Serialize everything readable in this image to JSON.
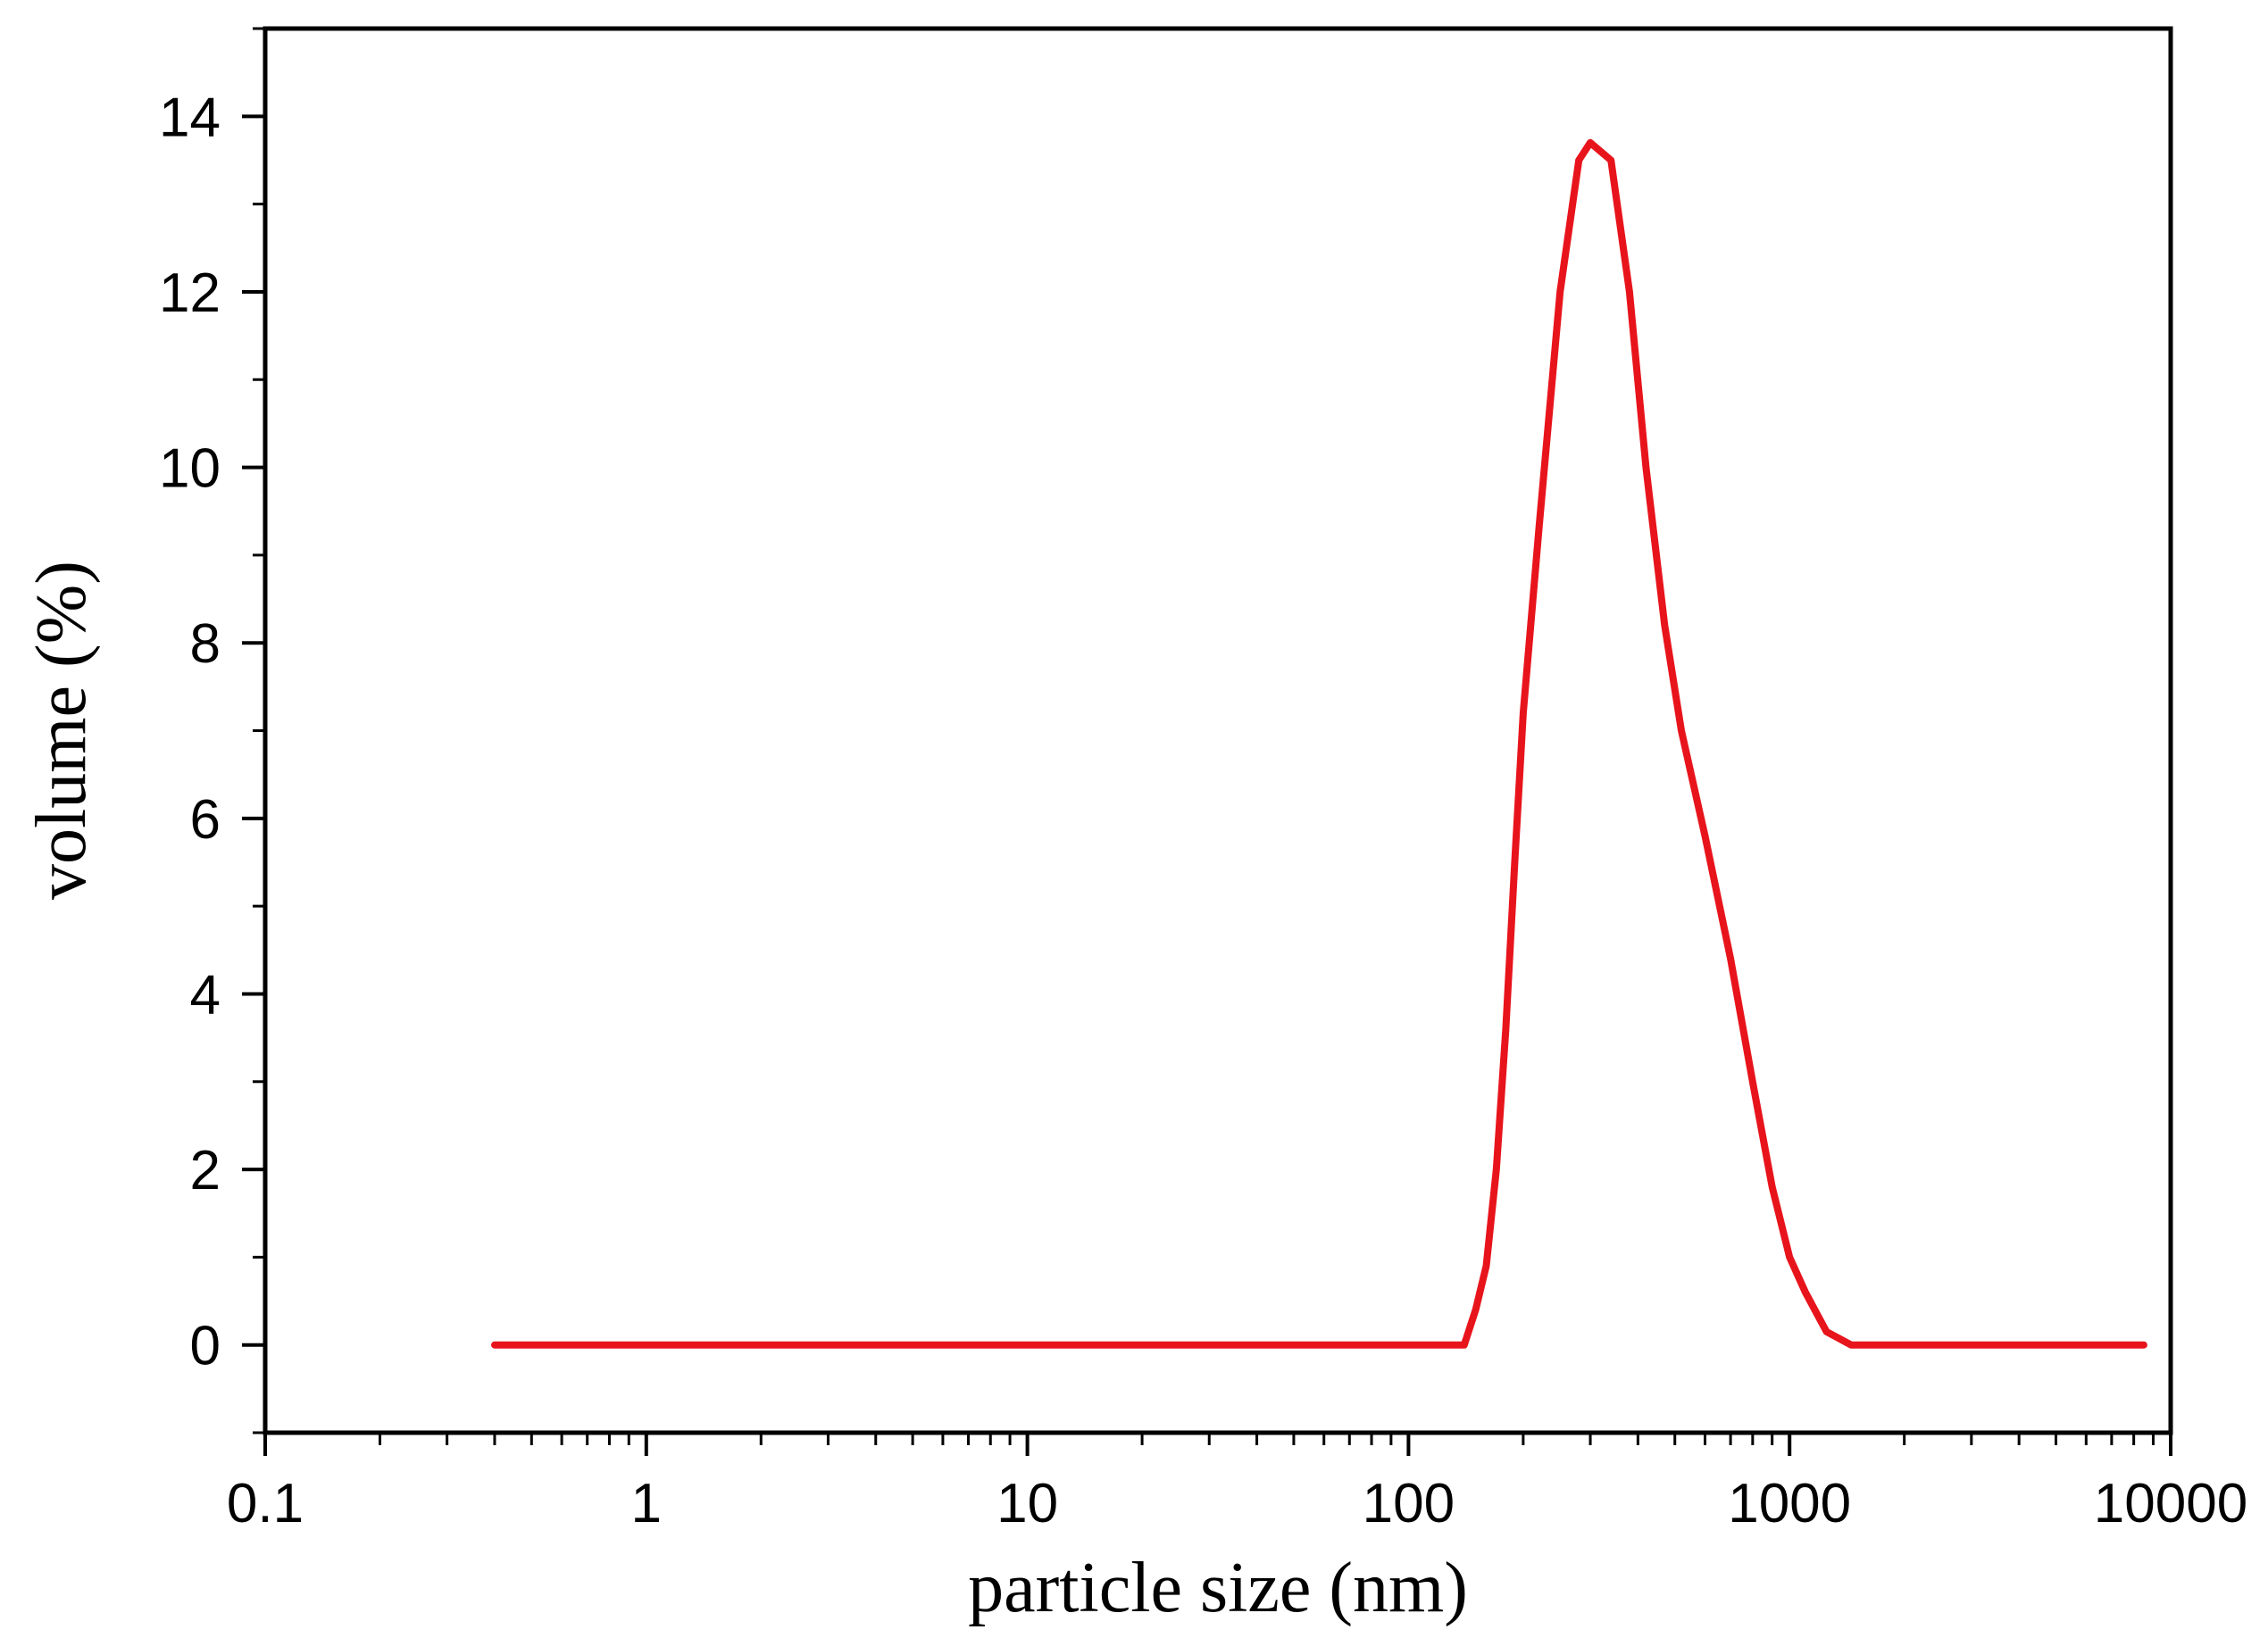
{
  "chart_data": {
    "type": "line",
    "xlabel": "particle size (nm)",
    "ylabel": "volume (%)",
    "x_scale": "log",
    "xlim": [
      0.1,
      10000
    ],
    "ylim": [
      -1,
      15
    ],
    "x_ticks": [
      0.1,
      1,
      10,
      100,
      1000,
      10000
    ],
    "x_tick_labels": [
      "0.1",
      "1",
      "10",
      "100",
      "1000",
      "10000"
    ],
    "y_ticks": [
      0,
      2,
      4,
      6,
      8,
      10,
      12,
      14
    ],
    "y_tick_labels": [
      "0",
      "2",
      "4",
      "6",
      "8",
      "10",
      "12",
      "14"
    ],
    "grid": false,
    "line_color": "#e8141c",
    "series": [
      {
        "x": [
          0.4,
          1,
          10,
          100,
          140,
          150,
          160,
          170,
          180,
          190,
          200,
          220,
          250,
          280,
          300,
          340,
          380,
          420,
          470,
          520,
          600,
          700,
          800,
          900,
          1000,
          1100,
          1250,
          1450,
          3000,
          8500
        ],
        "y": [
          0,
          0,
          0,
          0,
          0,
          0.4,
          0.9,
          2.0,
          3.6,
          5.5,
          7.2,
          9.3,
          12.0,
          13.5,
          13.7,
          13.5,
          12.0,
          10.0,
          8.2,
          7.0,
          5.8,
          4.4,
          3.0,
          1.8,
          1.0,
          0.6,
          0.15,
          0,
          0,
          0
        ]
      }
    ]
  }
}
